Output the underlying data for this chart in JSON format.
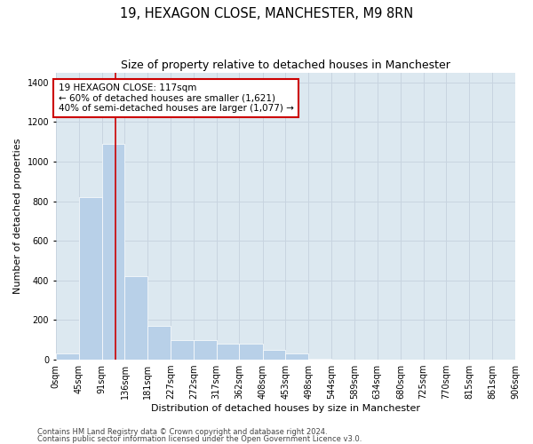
{
  "title": "19, HEXAGON CLOSE, MANCHESTER, M9 8RN",
  "subtitle": "Size of property relative to detached houses in Manchester",
  "xlabel": "Distribution of detached houses by size in Manchester",
  "ylabel": "Number of detached properties",
  "footnote1": "Contains HM Land Registry data © Crown copyright and database right 2024.",
  "footnote2": "Contains public sector information licensed under the Open Government Licence v3.0.",
  "annotation_title": "19 HEXAGON CLOSE: 117sqm",
  "annotation_line1": "← 60% of detached houses are smaller (1,621)",
  "annotation_line2": "40% of semi-detached houses are larger (1,077) →",
  "property_size": 117,
  "bar_edges": [
    0,
    45,
    91,
    136,
    181,
    227,
    272,
    317,
    362,
    408,
    453,
    498,
    544,
    589,
    634,
    680,
    725,
    770,
    815,
    861,
    906
  ],
  "bar_heights": [
    30,
    820,
    1090,
    420,
    170,
    100,
    100,
    80,
    80,
    50,
    30,
    5,
    0,
    0,
    0,
    0,
    0,
    0,
    0,
    0
  ],
  "bar_color": "#b8d0e8",
  "vline_color": "#cc0000",
  "vline_x": 117,
  "annotation_box_color": "#cc0000",
  "annotation_text_color": "#000000",
  "annotation_bg": "#ffffff",
  "grid_color": "#c8d4e0",
  "bg_color": "#dce8f0",
  "ylim": [
    0,
    1450
  ],
  "yticks": [
    0,
    200,
    400,
    600,
    800,
    1000,
    1200,
    1400
  ],
  "title_fontsize": 10.5,
  "subtitle_fontsize": 9,
  "label_fontsize": 8,
  "tick_fontsize": 7,
  "annotation_fontsize": 7.5,
  "footnote_fontsize": 6
}
